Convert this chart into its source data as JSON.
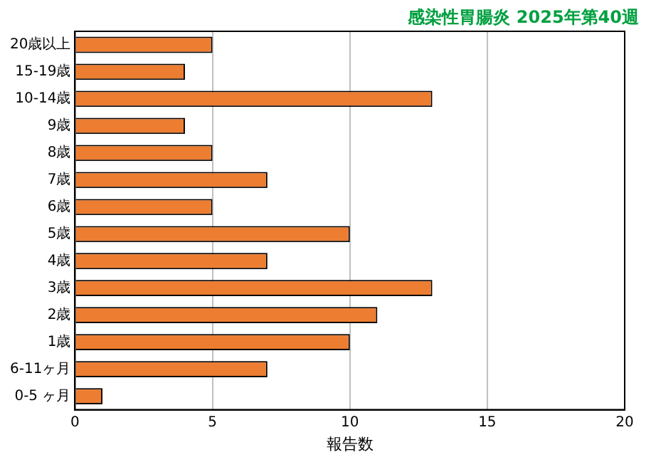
{
  "chart_data": {
    "type": "bar",
    "orientation": "horizontal",
    "title": "感染性胃腸炎 2025年第40週",
    "xlabel": "報告数",
    "categories": [
      "20歳以上",
      "15-19歳",
      "10-14歳",
      "9歳",
      "8歳",
      "7歳",
      "6歳",
      "5歳",
      "4歳",
      "3歳",
      "2歳",
      "1歳",
      "6-11ヶ月",
      "0-5 ヶ月"
    ],
    "values": [
      5,
      4,
      13,
      4,
      5,
      7,
      5,
      10,
      7,
      13,
      11,
      10,
      7,
      1
    ],
    "color": "#ed7d31",
    "xlim": [
      0,
      20
    ],
    "xticks": [
      0,
      5,
      10,
      15,
      20
    ],
    "grid": "x",
    "legend": false
  }
}
